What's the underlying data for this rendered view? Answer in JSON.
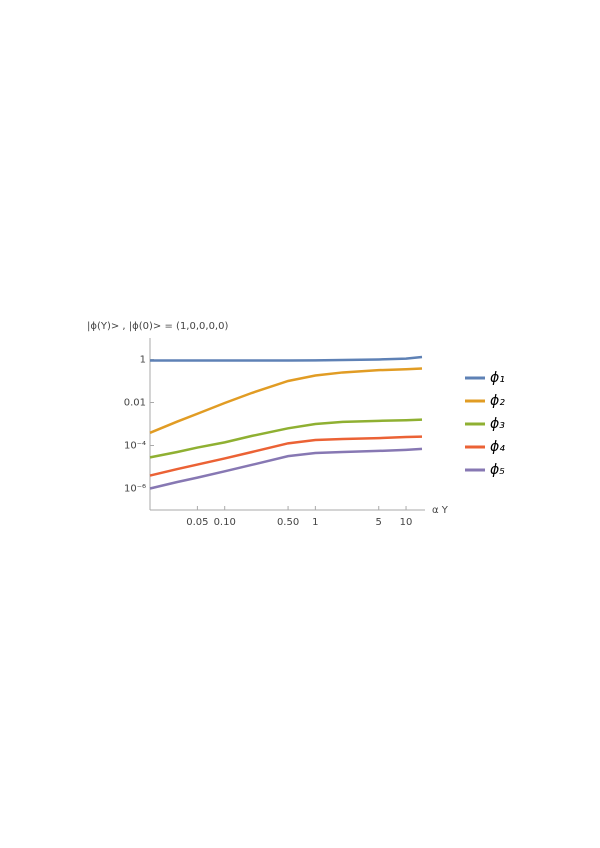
{
  "chart_data": {
    "type": "line",
    "title": "|ϕ(Y)> , |ϕ(0)> = (1,0,0,0,0)",
    "x_label": "α Y",
    "x": [
      0.015,
      0.03,
      0.05,
      0.1,
      0.2,
      0.5,
      1,
      2,
      5,
      10,
      15
    ],
    "series": [
      {
        "name": "ϕ₁",
        "color": "#5e81b5",
        "values": [
          0.9,
          0.9,
          0.9,
          0.9,
          0.9,
          0.9,
          0.91,
          0.95,
          1.0,
          1.1,
          1.3
        ]
      },
      {
        "name": "ϕ₂",
        "color": "#e19c24",
        "values": [
          0.00039,
          0.0013,
          0.003,
          0.0095,
          0.028,
          0.1,
          0.18,
          0.25,
          0.32,
          0.35,
          0.38
        ]
      },
      {
        "name": "ϕ₃",
        "color": "#8fb032",
        "values": [
          2.8e-05,
          5e-05,
          8e-05,
          0.00014,
          0.00028,
          0.00063,
          0.001,
          0.00126,
          0.0014,
          0.0015,
          0.0016
        ]
      },
      {
        "name": "ϕ₄",
        "color": "#eb6235",
        "values": [
          4e-06,
          8e-06,
          1.3e-05,
          2.5e-05,
          5e-05,
          0.000126,
          0.00018,
          0.0002,
          0.00022,
          0.00025,
          0.00026
        ]
      },
      {
        "name": "ϕ₅",
        "color": "#8778b3",
        "values": [
          1e-06,
          2e-06,
          3.2e-06,
          6.3e-06,
          1.26e-05,
          3.2e-05,
          4.5e-05,
          5e-05,
          5.6e-05,
          6.3e-05,
          7e-05
        ]
      }
    ],
    "xlim": [
      0.015,
      15
    ],
    "ylim": [
      1e-07,
      10
    ],
    "x_scale": "log",
    "y_scale": "log",
    "xticks": [
      0.05,
      {
        "value": 0.1,
        "label": "0.10"
      },
      {
        "value": 0.5,
        "label": "0.50"
      },
      1,
      5,
      10
    ],
    "yticks": [
      1,
      0.01,
      {
        "value": 0.0001,
        "label": "10⁻⁴"
      },
      {
        "value": 1e-06,
        "label": "10⁻⁶"
      }
    ],
    "legend": "right"
  }
}
